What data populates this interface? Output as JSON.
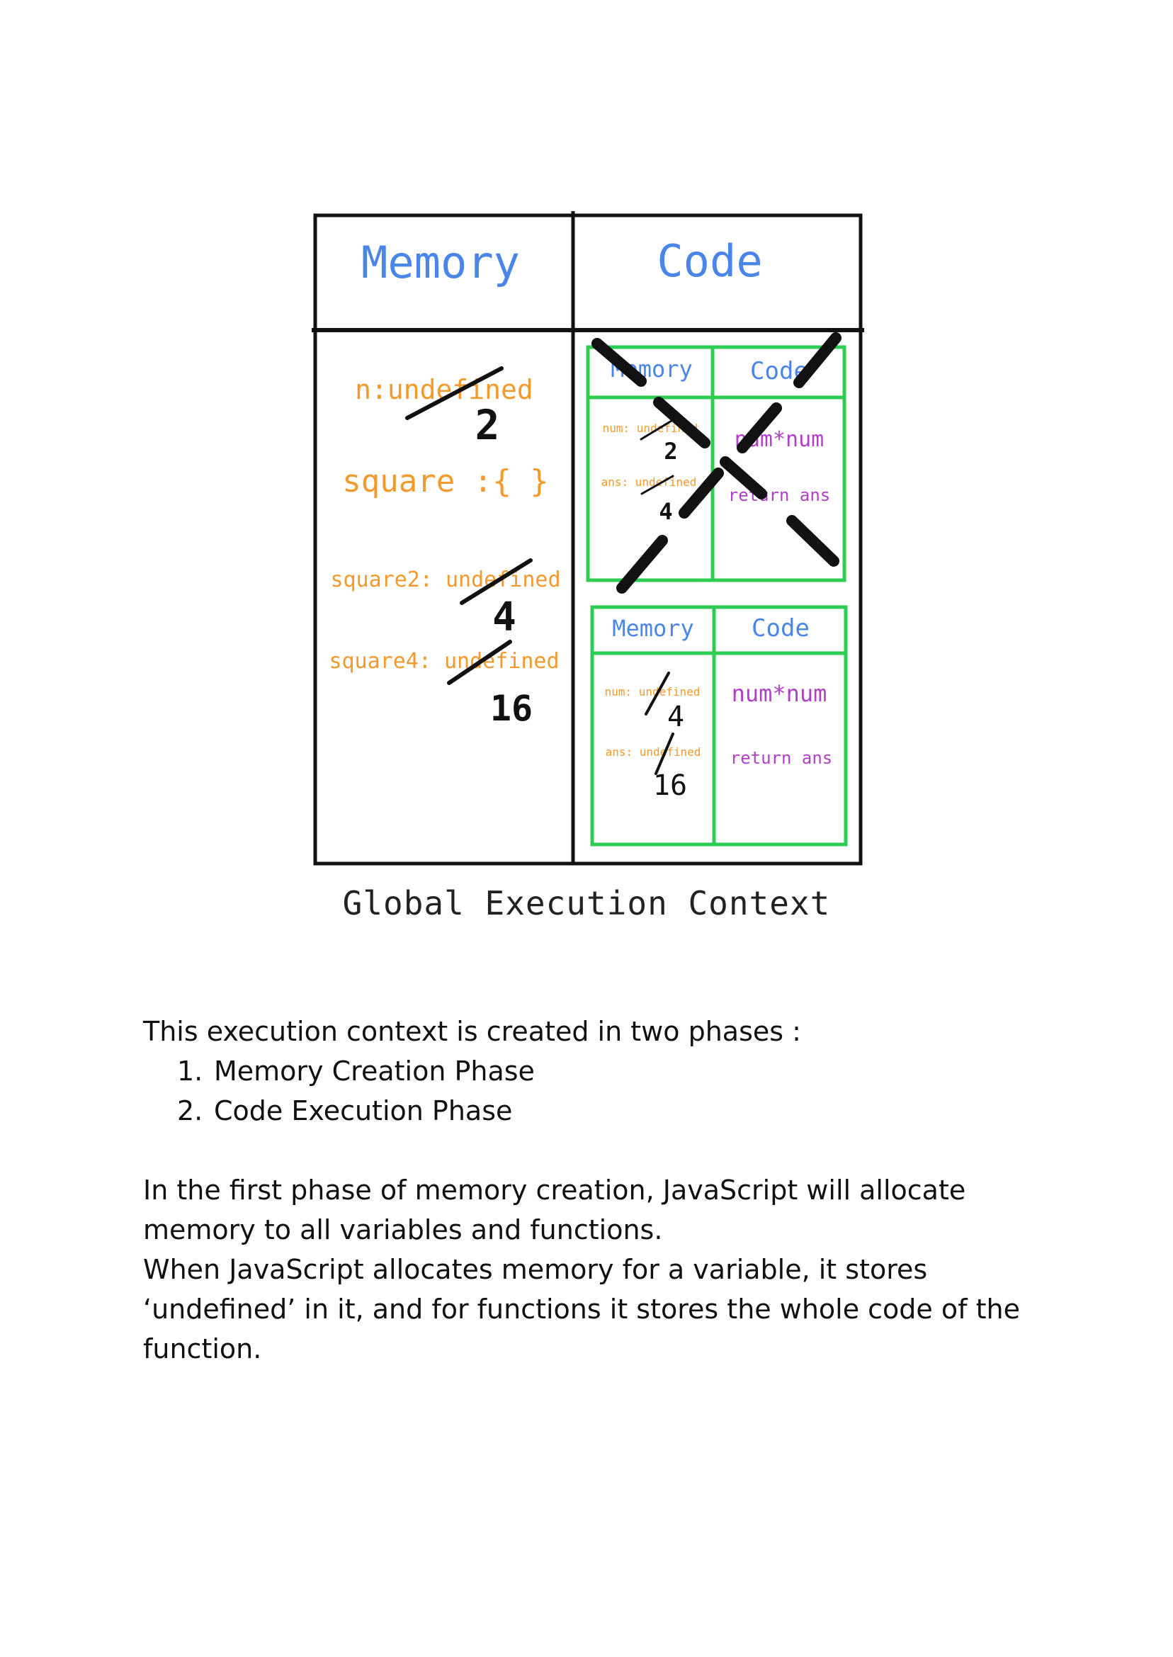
{
  "diagram": {
    "outer_headers": {
      "memory": "Memory",
      "code": "Code"
    },
    "global_memory": {
      "n_entry": "n:undefined",
      "n_value": "2",
      "square_entry": "square :{ }",
      "square2_entry": "square2: undefined",
      "square2_value": "4",
      "square4_entry": "square4: undefined",
      "square4_value": "16"
    },
    "context1": {
      "memory_header": "Memory",
      "code_header": "Code",
      "num_entry": "num: undefined",
      "num_value": "2",
      "ans_entry": "ans: undefined",
      "ans_value": "4",
      "code_line1": "num*num",
      "code_line2": "return ans"
    },
    "context2": {
      "memory_header": "Memory",
      "code_header": "Code",
      "num_entry": "num: undefined",
      "num_value": "4",
      "ans_entry": "ans: undefined",
      "ans_value": "16",
      "code_line1": "num*num",
      "code_line2": "return ans"
    },
    "caption": "Global Execution Context",
    "colors": {
      "header_blue": "#4a86e8",
      "memory_orange": "#f39a2e",
      "code_purple": "#b040c8",
      "inner_border_green": "#2ecc52",
      "ink_black": "#111111"
    }
  },
  "text": {
    "intro": "This execution context is created in two phases :",
    "phases": [
      {
        "num": "1.",
        "label": "Memory Creation Phase"
      },
      {
        "num": "2.",
        "label": "Code Execution Phase"
      }
    ],
    "paragraph1": "In the first phase of memory creation, JavaScript will allocate memory to all variables and functions.",
    "paragraph2": "When JavaScript allocates memory for a variable, it stores ‘undefined’ in it, and for functions it stores the whole code of the function."
  }
}
